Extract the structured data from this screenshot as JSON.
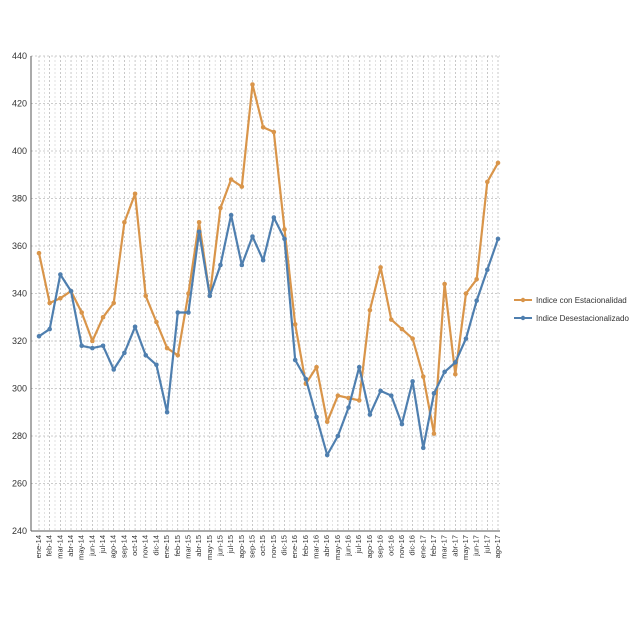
{
  "chart_data": {
    "type": "line",
    "title": "",
    "xlabel": "",
    "ylabel": "",
    "ylim": [
      240,
      440
    ],
    "yticks": [
      240,
      260,
      280,
      300,
      320,
      340,
      360,
      380,
      400,
      420,
      440
    ],
    "grid": "dashed vertical and horizontal",
    "legend_position": "right",
    "categories": [
      "ene-14",
      "feb-14",
      "mar-14",
      "abr-14",
      "may-14",
      "jun-14",
      "jul-14",
      "ago-14",
      "sep-14",
      "oct-14",
      "nov-14",
      "dic-14",
      "ene-15",
      "feb-15",
      "mar-15",
      "abr-15",
      "may-15",
      "jun-15",
      "jul-15",
      "ago-15",
      "sep-15",
      "oct-15",
      "nov-15",
      "dic-15",
      "ene-16",
      "feb-16",
      "mar-16",
      "abr-16",
      "may-16",
      "jun-16",
      "jul-16",
      "ago-16",
      "sep-16",
      "oct-16",
      "nov-16",
      "dic-16",
      "ene-17",
      "feb-17",
      "mar-17",
      "abr-17",
      "may-17",
      "jun-17",
      "jul-17",
      "ago-17"
    ],
    "series": [
      {
        "name": "Indice con Estacionalidad",
        "color": "#d9954a",
        "values": [
          357,
          336,
          338,
          341,
          332,
          320,
          330,
          336,
          370,
          382,
          339,
          328,
          317,
          314,
          340,
          370,
          339,
          376,
          388,
          385,
          428,
          410,
          408,
          367,
          327,
          302,
          309,
          286,
          297,
          296,
          295,
          333,
          351,
          329,
          325,
          321,
          305,
          281,
          344,
          306,
          340,
          346,
          387,
          395
        ]
      },
      {
        "name": "Indice Desestacionalizado",
        "color": "#4f7faf",
        "values": [
          322,
          325,
          348,
          341,
          318,
          317,
          318,
          308,
          315,
          326,
          314,
          310,
          290,
          332,
          332,
          366,
          339,
          352,
          373,
          352,
          364,
          354,
          372,
          363,
          312,
          304,
          288,
          272,
          280,
          292,
          309,
          289,
          299,
          297,
          285,
          303,
          275,
          298,
          307,
          311,
          321,
          337,
          350,
          363
        ]
      }
    ]
  }
}
